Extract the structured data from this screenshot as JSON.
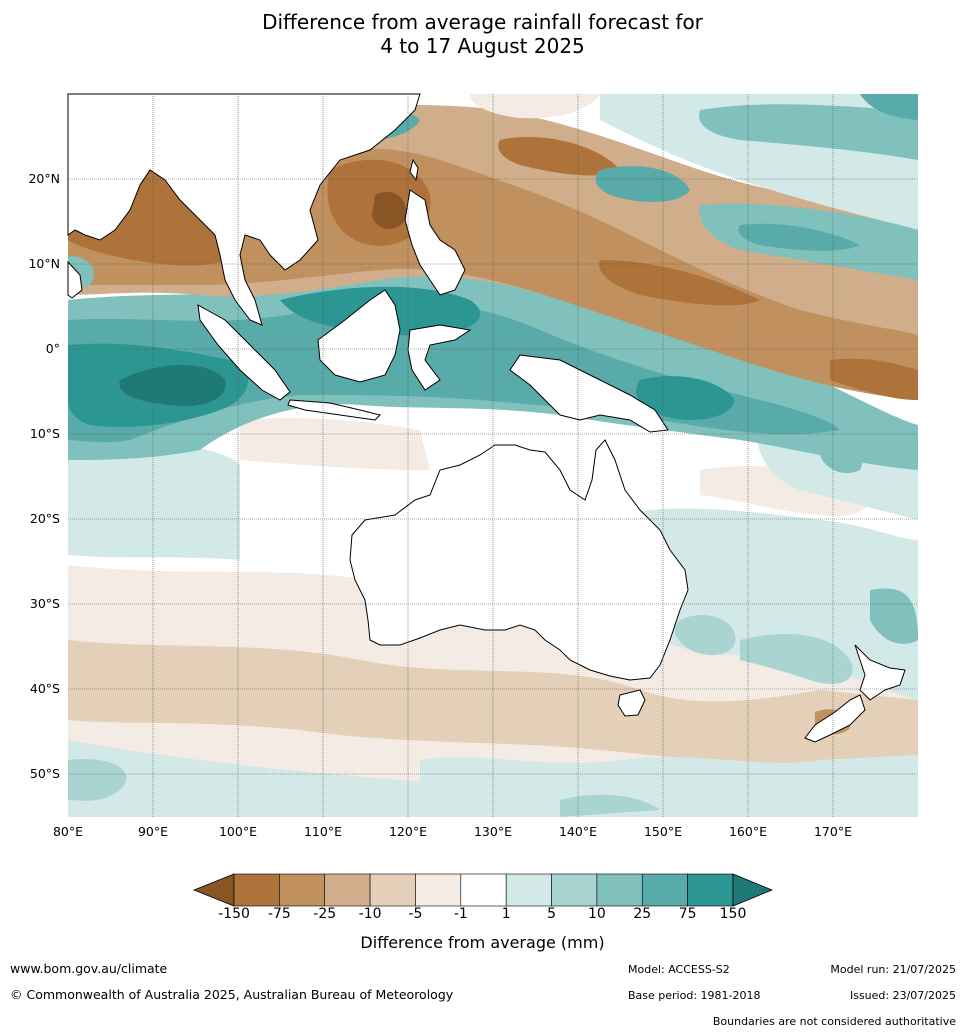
{
  "title": {
    "line1": "Difference from average rainfall forecast for",
    "line2": "4 to 17 August 2025"
  },
  "axes": {
    "lat_labels": [
      "20°N",
      "10°N",
      "0°",
      "10°S",
      "20°S",
      "30°S",
      "40°S",
      "50°S"
    ],
    "lon_labels": [
      "80°E",
      "90°E",
      "100°E",
      "110°E",
      "120°E",
      "130°E",
      "140°E",
      "150°E",
      "160°E",
      "170°E"
    ]
  },
  "colorbar": {
    "title": "Difference from average (mm)",
    "ticks": [
      "-150",
      "-75",
      "-25",
      "-10",
      "-5",
      "-1",
      "1",
      "5",
      "10",
      "25",
      "75",
      "150"
    ],
    "colors": [
      "#8a5524",
      "#ad733b",
      "#c0915f",
      "#d1ae8b",
      "#e4cfb9",
      "#f4ebe4",
      "#ffffff",
      "#d3e9e8",
      "#a9d4d2",
      "#80c0bd",
      "#58aba8",
      "#2c9693",
      "#1f7a76"
    ]
  },
  "footer": {
    "url": "www.bom.gov.au/climate",
    "copyright": "© Commonwealth of Australia 2025, Australian Bureau of Meteorology",
    "model": "Model: ACCESS-S2",
    "base_period": "Base period: 1981-2018",
    "model_run": "Model run: 21/07/2025",
    "issued": "Issued: 23/07/2025",
    "disclaimer": "Boundaries are not considered authoritative"
  }
}
